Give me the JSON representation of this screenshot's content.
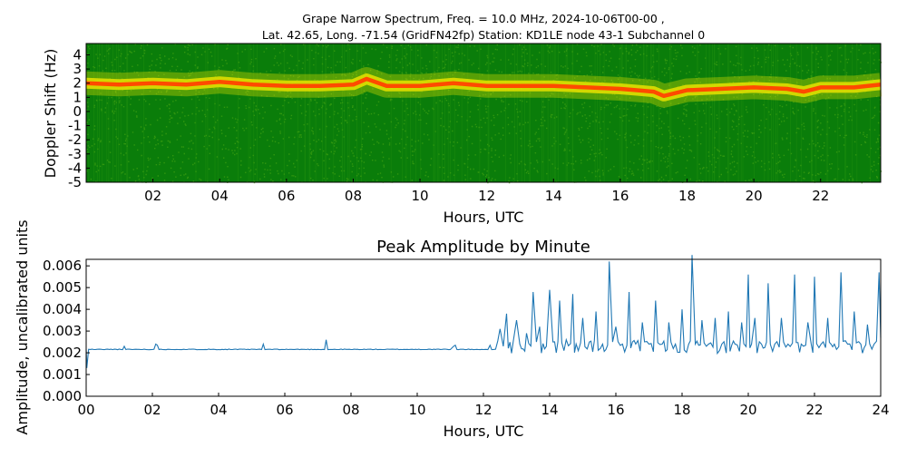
{
  "figure": {
    "title_line1": "Grape Narrow Spectrum, Freq. = 10.0 MHz, 2024-10-06T00-00 ,",
    "title_line2": "Lat.  42.65, Long. -71.54 (GridFN42fp) Station: KD1LE node 43-1 Subchannel 0"
  },
  "chart_data": [
    {
      "type": "heatmap",
      "title": "",
      "xlabel": "Hours, UTC",
      "ylabel": "Doppler Shift (Hz)",
      "xlim": [
        0,
        23.8
      ],
      "ylim": [
        -5,
        4.8
      ],
      "x_ticks": [
        2,
        4,
        6,
        8,
        10,
        12,
        14,
        16,
        18,
        20,
        22
      ],
      "x_tick_labels": [
        "02",
        "04",
        "06",
        "08",
        "10",
        "12",
        "14",
        "16",
        "18",
        "20",
        "22"
      ],
      "y_ticks": [
        4,
        3,
        2,
        1,
        0,
        -1,
        -2,
        -3,
        -4,
        -5
      ],
      "y_tick_labels": [
        "4",
        "3",
        "2",
        "1",
        "0",
        "-1",
        "-2",
        "-3",
        "-4",
        "-5"
      ],
      "colors": {
        "background": "#0a7d0a",
        "noise": "#46a612",
        "band_edge": "#e8e200",
        "band_core": "#ff4a00"
      },
      "peak_band": {
        "hours": [
          0,
          1,
          2,
          3,
          4,
          5,
          6,
          7,
          8,
          8.4,
          9,
          10,
          11,
          12,
          13,
          14,
          15,
          16,
          16.5,
          17,
          17.3,
          18,
          19,
          20,
          21,
          21.5,
          22,
          23,
          23.8
        ],
        "doppler_hz": [
          2.0,
          1.9,
          2.0,
          1.9,
          2.1,
          1.9,
          1.8,
          1.8,
          1.9,
          2.3,
          1.8,
          1.8,
          2.0,
          1.8,
          1.8,
          1.8,
          1.7,
          1.6,
          1.5,
          1.4,
          1.1,
          1.5,
          1.6,
          1.7,
          1.6,
          1.4,
          1.7,
          1.7,
          1.9
        ]
      }
    },
    {
      "type": "line",
      "title": "Peak Amplitude by Minute",
      "xlabel": "Hours, UTC",
      "ylabel": "Amplitude, uncalibrated units",
      "xlim": [
        0,
        24
      ],
      "ylim": [
        0,
        0.0063
      ],
      "x_ticks": [
        0,
        2,
        4,
        6,
        8,
        10,
        12,
        14,
        16,
        18,
        20,
        22,
        24
      ],
      "x_tick_labels": [
        "00",
        "02",
        "04",
        "06",
        "08",
        "10",
        "12",
        "14",
        "16",
        "18",
        "20",
        "22",
        "24"
      ],
      "y_ticks": [
        0,
        0.001,
        0.002,
        0.003,
        0.004,
        0.005,
        0.006
      ],
      "y_tick_labels": [
        "0.000",
        "0.001",
        "0.002",
        "0.003",
        "0.004",
        "0.005",
        "0.006"
      ],
      "line_color": "#1f77b4",
      "baseline": 0.00215,
      "series": [
        {
          "x": [
            0,
            0.02,
            0.5,
            1.1,
            1.15,
            1.2,
            2.0,
            2.1,
            2.15,
            2.2,
            3.0,
            4.0,
            5.3,
            5.35,
            5.4,
            6.0,
            7.2,
            7.25,
            7.3,
            8.0,
            9.0,
            10.0,
            11.0,
            11.1,
            11.15,
            11.2,
            12.0,
            12.2,
            12.3,
            12.5,
            12.6,
            12.7,
            12.9,
            13.0,
            13.1,
            13.3,
            13.5,
            13.6,
            13.7,
            13.9,
            14.0,
            14.1,
            14.3,
            14.5,
            14.7,
            14.8,
            15.0,
            15.2,
            15.4,
            15.6,
            15.8,
            15.9,
            16.0,
            16.2,
            16.4,
            16.6,
            16.8,
            17.0,
            17.2,
            17.4,
            17.6,
            17.8,
            18.0,
            18.2,
            18.3,
            18.4,
            18.6,
            18.8,
            19.0,
            19.2,
            19.4,
            19.6,
            19.8,
            20.0,
            20.1,
            20.2,
            20.4,
            20.6,
            20.8,
            21.0,
            21.2,
            21.4,
            21.6,
            21.8,
            21.9,
            22.0,
            22.2,
            22.4,
            22.6,
            22.8,
            23.0,
            23.2,
            23.4,
            23.6,
            23.8,
            23.95,
            24.0
          ],
          "y": [
            0.00215,
            0.0013,
            0.00215,
            0.00215,
            0.0023,
            0.00215,
            0.00215,
            0.0024,
            0.00235,
            0.00215,
            0.00215,
            0.00215,
            0.00215,
            0.0024,
            0.00215,
            0.00215,
            0.00215,
            0.0026,
            0.00215,
            0.00215,
            0.00215,
            0.00215,
            0.00215,
            0.0023,
            0.00235,
            0.00215,
            0.00215,
            0.00235,
            0.00215,
            0.0031,
            0.0023,
            0.0038,
            0.0025,
            0.0035,
            0.0024,
            0.0029,
            0.0048,
            0.0025,
            0.0032,
            0.0023,
            0.0049,
            0.0025,
            0.0044,
            0.0026,
            0.0047,
            0.0024,
            0.0036,
            0.0025,
            0.0039,
            0.0024,
            0.0062,
            0.0025,
            0.0032,
            0.0024,
            0.0048,
            0.0024,
            0.0034,
            0.0024,
            0.0044,
            0.0024,
            0.0034,
            0.0024,
            0.004,
            0.0024,
            0.0065,
            0.0024,
            0.0035,
            0.0024,
            0.0036,
            0.0024,
            0.0039,
            0.0024,
            0.0034,
            0.0056,
            0.0024,
            0.0036,
            0.0024,
            0.0052,
            0.0024,
            0.0036,
            0.0024,
            0.0056,
            0.0024,
            0.0034,
            0.0024,
            0.0055,
            0.0024,
            0.0036,
            0.0024,
            0.0057,
            0.0024,
            0.0039,
            0.0024,
            0.0033,
            0.0024,
            0.0057,
            0.0027
          ]
        }
      ]
    }
  ]
}
